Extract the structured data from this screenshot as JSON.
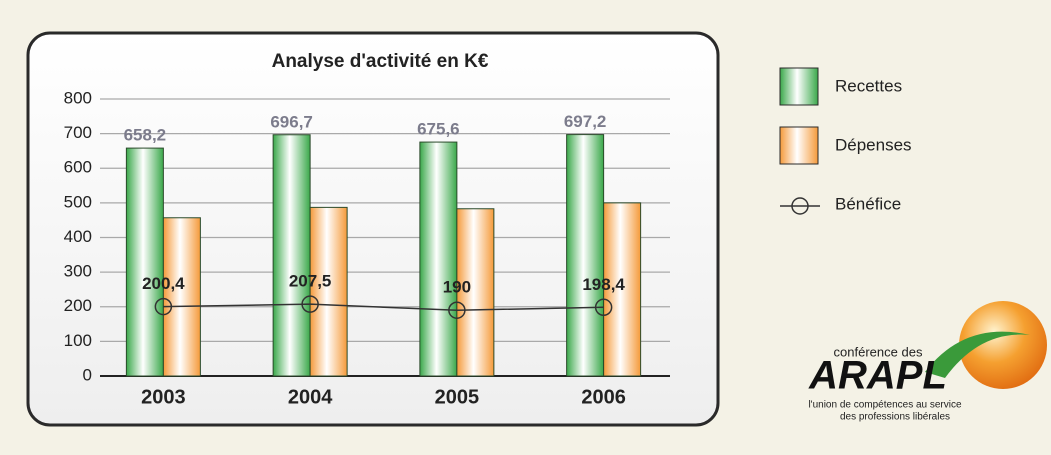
{
  "chart_data": {
    "type": "bar",
    "title": "Analyse d'activité en K€",
    "categories": [
      "2003",
      "2004",
      "2005",
      "2006"
    ],
    "series": [
      {
        "name": "Recettes",
        "color": "#3aa84a",
        "values": [
          658.2,
          696.7,
          675.6,
          697.2
        ],
        "value_labels": [
          "658,2",
          "696,7",
          "675,6",
          "697,2"
        ]
      },
      {
        "name": "Dépenses",
        "color": "#f59a3a",
        "values": [
          457,
          487,
          483,
          500
        ]
      },
      {
        "name": "Bénéfice",
        "type": "line",
        "color": "#333333",
        "values": [
          200.4,
          207.5,
          190,
          198.4
        ],
        "value_labels": [
          "200,4",
          "207,5",
          "190",
          "198,4"
        ]
      }
    ],
    "ylim": [
      0,
      800
    ],
    "yticks": [
      0,
      100,
      200,
      300,
      400,
      500,
      600,
      700,
      800
    ],
    "grid": true,
    "legend": "right"
  },
  "logo": {
    "line1": "conférence des",
    "name": "ARAPL",
    "line2": "l'union de compétences au service",
    "line3": "des professions libérales"
  }
}
